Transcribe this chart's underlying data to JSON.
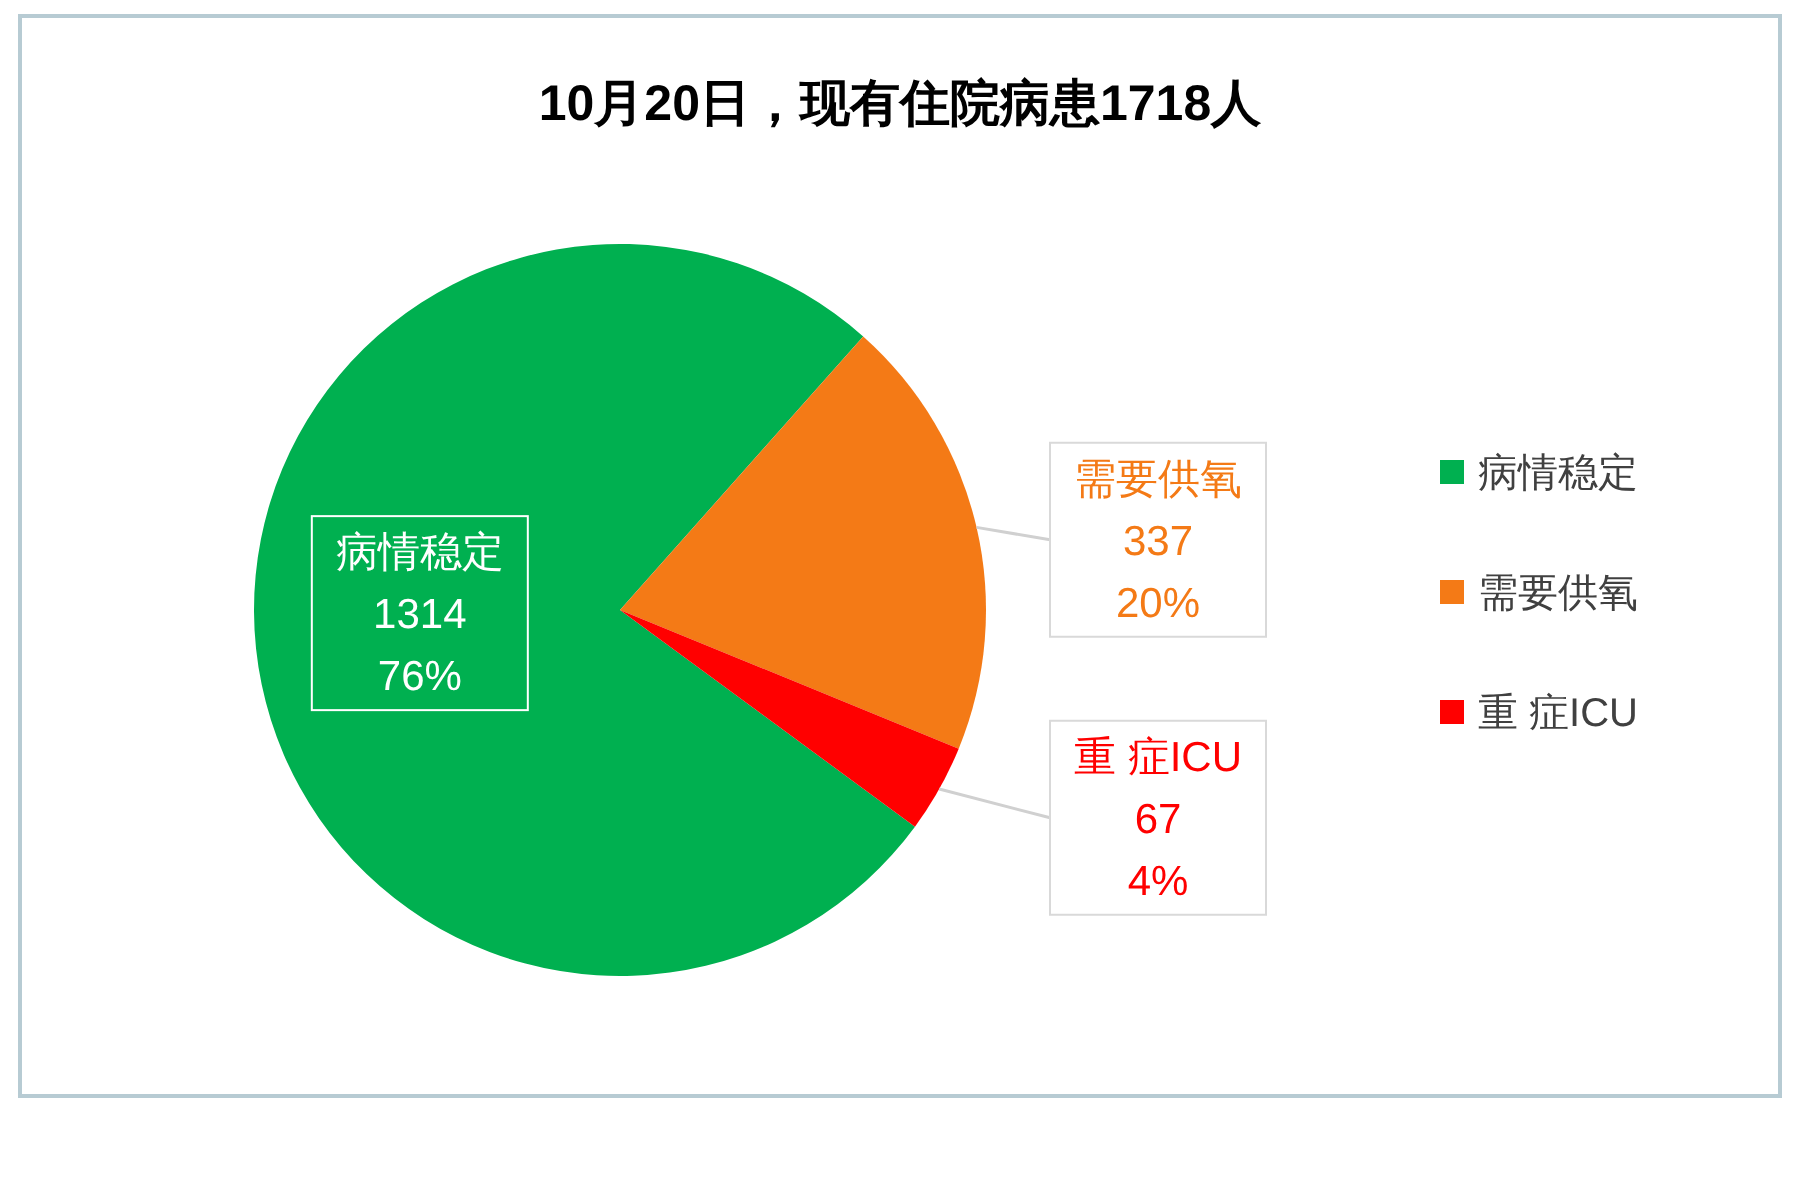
{
  "chart_data": {
    "type": "pie",
    "title": "10月20日，现有住院病患1718人",
    "categories": [
      "病情稳定",
      "需要供氧",
      "重 症ICU"
    ],
    "values": [
      1314,
      337,
      67
    ],
    "colors": [
      "#00b050",
      "#f47a16",
      "#ff0000"
    ],
    "value_labels": [
      "1314\n76%",
      "337\n20%",
      "67\n4%"
    ],
    "legend": "right"
  }
}
